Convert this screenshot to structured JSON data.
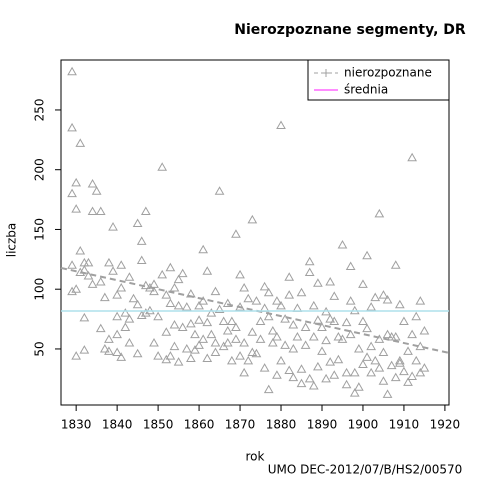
{
  "chart_data": {
    "type": "scatter",
    "title": "Nierozpoznane segmenty, DR",
    "xlabel": "rok",
    "ylabel": "liczba",
    "footer": "UMO DEC-2012/07/B/HS2/00570",
    "xlim": [
      1826.3,
      1921
    ],
    "ylim": [
      3.1,
      291.8
    ],
    "xticks": [
      1830,
      1840,
      1850,
      1860,
      1870,
      1880,
      1890,
      1900,
      1910,
      1920
    ],
    "yticks": [
      50,
      100,
      150,
      200,
      250
    ],
    "legend_position": "top-right",
    "series": [
      {
        "name": "nierozpoznane",
        "color": "#a0a0a0",
        "x": [
          1829,
          1829,
          1829,
          1829,
          1829,
          1830,
          1830,
          1830,
          1830,
          1831,
          1831,
          1831,
          1832,
          1832,
          1832,
          1832,
          1833,
          1833,
          1834,
          1834,
          1834,
          1835,
          1836,
          1836,
          1836,
          1837,
          1837,
          1838,
          1838,
          1838,
          1839,
          1839,
          1840,
          1840,
          1840,
          1840,
          1841,
          1841,
          1841,
          1842,
          1842,
          1843,
          1843,
          1843,
          1844,
          1845,
          1845,
          1845,
          1846,
          1846,
          1846,
          1847,
          1847,
          1847,
          1848,
          1848,
          1849,
          1849,
          1849,
          1850,
          1850,
          1851,
          1851,
          1852,
          1852,
          1852,
          1853,
          1853,
          1853,
          1854,
          1854,
          1854,
          1855,
          1855,
          1855,
          1856,
          1856,
          1857,
          1857,
          1858,
          1858,
          1858,
          1859,
          1859,
          1860,
          1860,
          1860,
          1861,
          1861,
          1861,
          1862,
          1862,
          1862,
          1863,
          1863,
          1864,
          1864,
          1864,
          1865,
          1865,
          1866,
          1866,
          1867,
          1867,
          1867,
          1868,
          1868,
          1869,
          1869,
          1869,
          1870,
          1870,
          1870,
          1871,
          1871,
          1871,
          1872,
          1872,
          1873,
          1873,
          1873,
          1874,
          1874,
          1875,
          1875,
          1876,
          1876,
          1876,
          1877,
          1877,
          1877,
          1878,
          1878,
          1879,
          1879,
          1879,
          1880,
          1880,
          1880,
          1881,
          1881,
          1882,
          1882,
          1882,
          1883,
          1883,
          1883,
          1884,
          1884,
          1885,
          1885,
          1885,
          1886,
          1886,
          1887,
          1887,
          1887,
          1888,
          1888,
          1888,
          1889,
          1889,
          1889,
          1890,
          1890,
          1891,
          1891,
          1891,
          1892,
          1892,
          1892,
          1893,
          1893,
          1893,
          1894,
          1894,
          1895,
          1895,
          1896,
          1896,
          1896,
          1897,
          1897,
          1897,
          1898,
          1898,
          1898,
          1899,
          1899,
          1900,
          1900,
          1900,
          1901,
          1901,
          1901,
          1902,
          1902,
          1902,
          1903,
          1903,
          1904,
          1904,
          1904,
          1905,
          1905,
          1905,
          1906,
          1906,
          1906,
          1907,
          1907,
          1908,
          1908,
          1908,
          1909,
          1909,
          1909,
          1910,
          1910,
          1911,
          1911,
          1912,
          1912,
          1912,
          1913,
          1913,
          1914,
          1914,
          1914,
          1915,
          1915
        ],
        "values": [
          282,
          235,
          180,
          120,
          98,
          189,
          167,
          100,
          44,
          222,
          132,
          114,
          122,
          116,
          76,
          49,
          122,
          111,
          188,
          165,
          104,
          182,
          165,
          106,
          67,
          93,
          50,
          122,
          58,
          48,
          152,
          115,
          95,
          77,
          62,
          47,
          120,
          101,
          43,
          80,
          68,
          110,
          75,
          55,
          92,
          155,
          87,
          46,
          140,
          124,
          78,
          165,
          103,
          80,
          101,
          82,
          104,
          98,
          55,
          77,
          44,
          202,
          112,
          95,
          64,
          41,
          118,
          88,
          44,
          101,
          70,
          52,
          108,
          86,
          39,
          113,
          68,
          85,
          50,
          96,
          71,
          42,
          62,
          49,
          86,
          74,
          53,
          133,
          90,
          58,
          115,
          72,
          42,
          80,
          62,
          98,
          55,
          47,
          182,
          83,
          73,
          52,
          88,
          65,
          55,
          73,
          40,
          146,
          68,
          58,
          112,
          85,
          44,
          101,
          55,
          30,
          92,
          40,
          158,
          64,
          47,
          90,
          46,
          73,
          58,
          102,
          84,
          34,
          97,
          77,
          16,
          65,
          55,
          90,
          60,
          28,
          237,
          86,
          40,
          75,
          53,
          110,
          95,
          32,
          70,
          50,
          26,
          84,
          60,
          97,
          33,
          21,
          68,
          53,
          123,
          114,
          25,
          86,
          60,
          19,
          105,
          74,
          35,
          68,
          48,
          81,
          57,
          25,
          106,
          75,
          39,
          94,
          73,
          28,
          60,
          41,
          137,
          58,
          72,
          30,
          20,
          119,
          90,
          62,
          82,
          30,
          13,
          50,
          18,
          104,
          73,
          37,
          128,
          67,
          43,
          85,
          52,
          30,
          93,
          40,
          163,
          58,
          34,
          95,
          47,
          23,
          91,
          62,
          12,
          60,
          36,
          120,
          60,
          26,
          87,
          40,
          38,
          73,
          31,
          48,
          22,
          210,
          62,
          27,
          77,
          40,
          90,
          52,
          30,
          65,
          34
        ]
      }
    ],
    "trend": {
      "x": [
        1826.3,
        1921
      ],
      "y": [
        117.8,
        46.7
      ],
      "color": "#a0a0a0"
    },
    "mean": {
      "name": "średnia",
      "value": 81.8,
      "color": "#ade0ec",
      "legend_color": "#ff66ff"
    }
  }
}
